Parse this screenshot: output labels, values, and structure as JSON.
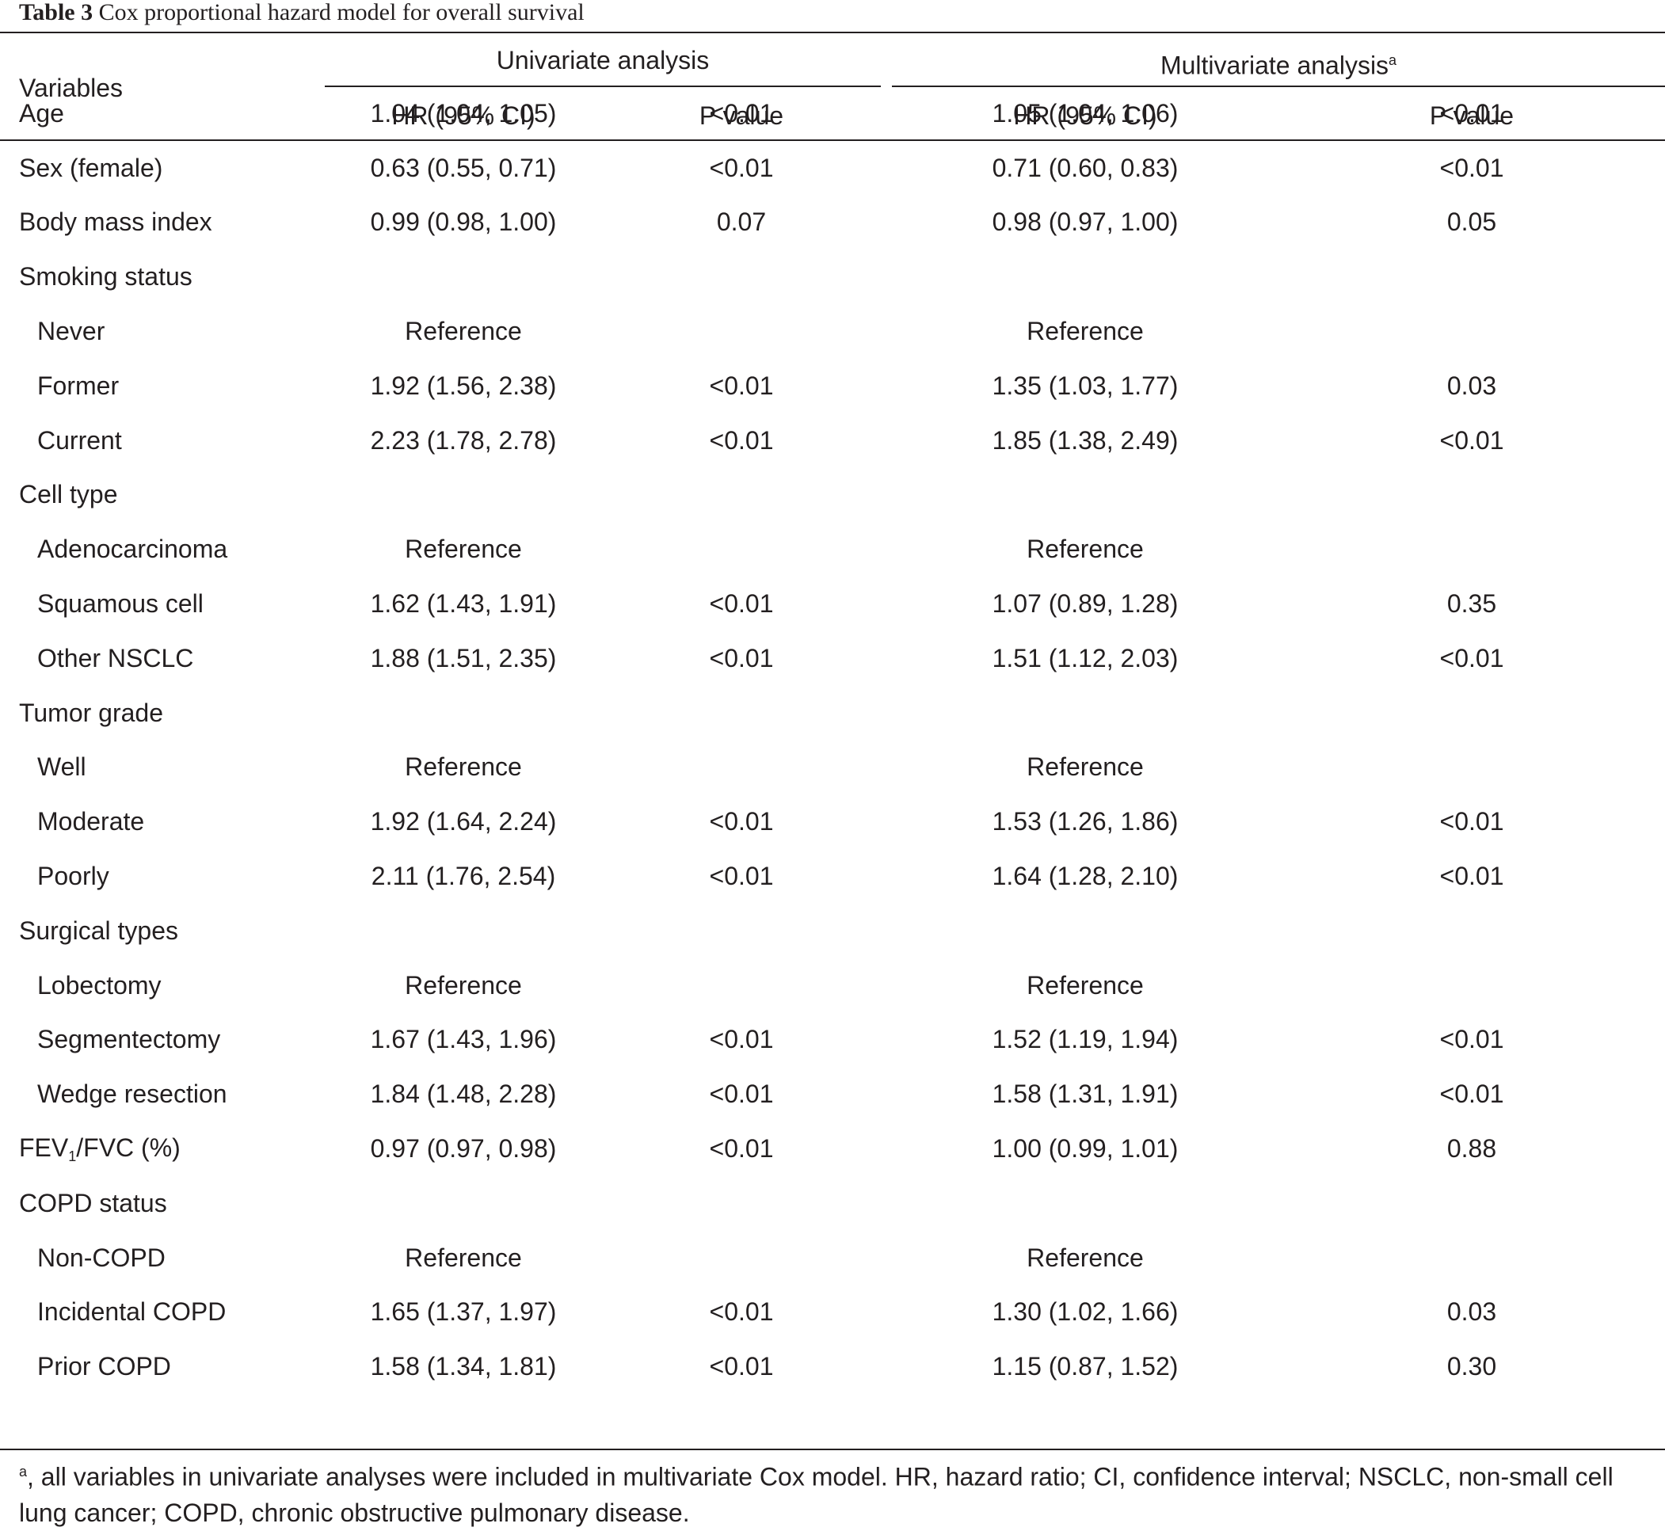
{
  "caption": {
    "label": "Table 3",
    "title": "Cox proportional hazard model for overall survival"
  },
  "header": {
    "variables": "Variables",
    "univariate": "Univariate analysis",
    "multivariate": "Multivariate analysis",
    "multivariate_marker": "a",
    "hr_ci": "HR (95% CI)",
    "p_value": "P value"
  },
  "rows": [
    {
      "variable": "Age",
      "uni_hr": "1.04 (1.04, 1.05)",
      "uni_p": "<0.01",
      "multi_hr": "1.05 (1.04, 1.06)",
      "multi_p": "<0.01"
    },
    {
      "variable": "Sex (female)",
      "uni_hr": "0.63 (0.55, 0.71)",
      "uni_p": "<0.01",
      "multi_hr": "0.71 (0.60, 0.83)",
      "multi_p": "<0.01"
    },
    {
      "variable": "Body mass index",
      "uni_hr": "0.99 (0.98, 1.00)",
      "uni_p": "0.07",
      "multi_hr": "0.98 (0.97, 1.00)",
      "multi_p": "0.05"
    },
    {
      "variable": "Smoking status",
      "uni_hr": "",
      "uni_p": "",
      "multi_hr": "",
      "multi_p": ""
    },
    {
      "variable": "Never",
      "uni_hr": "Reference",
      "uni_p": "",
      "multi_hr": "Reference",
      "multi_p": ""
    },
    {
      "variable": "Former",
      "uni_hr": "1.92 (1.56, 2.38)",
      "uni_p": "<0.01",
      "multi_hr": "1.35 (1.03, 1.77)",
      "multi_p": "0.03"
    },
    {
      "variable": "Current",
      "uni_hr": "2.23 (1.78, 2.78)",
      "uni_p": "<0.01",
      "multi_hr": "1.85 (1.38, 2.49)",
      "multi_p": "<0.01"
    },
    {
      "variable": "Cell type",
      "uni_hr": "",
      "uni_p": "",
      "multi_hr": "",
      "multi_p": ""
    },
    {
      "variable": "Adenocarcinoma",
      "uni_hr": "Reference",
      "uni_p": "",
      "multi_hr": "Reference",
      "multi_p": ""
    },
    {
      "variable": "Squamous cell",
      "uni_hr": "1.62 (1.43, 1.91)",
      "uni_p": "<0.01",
      "multi_hr": "1.07 (0.89, 1.28)",
      "multi_p": "0.35"
    },
    {
      "variable": "Other NSCLC",
      "uni_hr": "1.88 (1.51, 2.35)",
      "uni_p": "<0.01",
      "multi_hr": "1.51 (1.12, 2.03)",
      "multi_p": "<0.01"
    },
    {
      "variable": "Tumor grade",
      "uni_hr": "",
      "uni_p": "",
      "multi_hr": "",
      "multi_p": ""
    },
    {
      "variable": "Well",
      "uni_hr": "Reference",
      "uni_p": "",
      "multi_hr": "Reference",
      "multi_p": ""
    },
    {
      "variable": "Moderate",
      "uni_hr": "1.92 (1.64, 2.24)",
      "uni_p": "<0.01",
      "multi_hr": "1.53 (1.26, 1.86)",
      "multi_p": "<0.01"
    },
    {
      "variable": "Poorly",
      "uni_hr": "2.11 (1.76, 2.54)",
      "uni_p": "<0.01",
      "multi_hr": "1.64 (1.28, 2.10)",
      "multi_p": "<0.01"
    },
    {
      "variable": "Surgical types",
      "uni_hr": "",
      "uni_p": "",
      "multi_hr": "",
      "multi_p": ""
    },
    {
      "variable": "Lobectomy",
      "uni_hr": "Reference",
      "uni_p": "",
      "multi_hr": "Reference",
      "multi_p": ""
    },
    {
      "variable": "Segmentectomy",
      "uni_hr": "1.67 (1.43, 1.96)",
      "uni_p": "<0.01",
      "multi_hr": "1.52 (1.19, 1.94)",
      "multi_p": "<0.01"
    },
    {
      "variable": "Wedge resection",
      "uni_hr": "1.84 (1.48, 2.28)",
      "uni_p": "<0.01",
      "multi_hr": "1.58 (1.31, 1.91)",
      "multi_p": "<0.01"
    },
    {
      "variable": "FEV",
      "variable_sub": "1",
      "variable_suffix": "/FVC (%)",
      "uni_hr": "0.97 (0.97, 0.98)",
      "uni_p": "<0.01",
      "multi_hr": "1.00 (0.99, 1.01)",
      "multi_p": "0.88"
    },
    {
      "variable": "COPD status",
      "uni_hr": "",
      "uni_p": "",
      "multi_hr": "",
      "multi_p": ""
    },
    {
      "variable": "Non-COPD",
      "uni_hr": "Reference",
      "uni_p": "",
      "multi_hr": "Reference",
      "multi_p": ""
    },
    {
      "variable": "Incidental COPD",
      "uni_hr": "1.65 (1.37, 1.97)",
      "uni_p": "<0.01",
      "multi_hr": "1.30 (1.02, 1.66)",
      "multi_p": "0.03"
    },
    {
      "variable": "Prior COPD",
      "uni_hr": "1.58 (1.34, 1.81)",
      "uni_p": "<0.01",
      "multi_hr": "1.15 (0.87, 1.52)",
      "multi_p": "0.30"
    }
  ],
  "footnote": {
    "marker": "a",
    "text": ", all variables in univariate analyses were included in multivariate Cox model. HR, hazard ratio; CI, confidence interval; NSCLC, non-small cell lung cancer; COPD, chronic obstructive pulmonary disease."
  }
}
